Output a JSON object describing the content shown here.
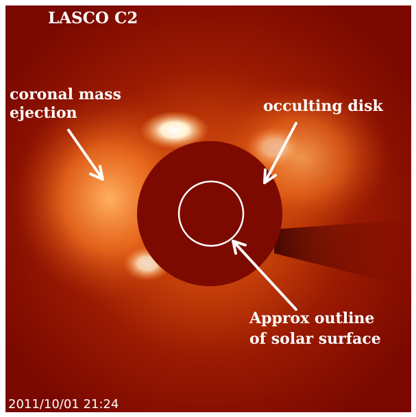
{
  "title": "LASCO C2",
  "annotations": [
    {
      "lines": [
        "coronal mass",
        "ejection"
      ]
    },
    {
      "lines": [
        "occulting disk"
      ]
    },
    {
      "lines": [
        "Approx outline",
        "of solar surface"
      ]
    }
  ],
  "timestamp": "2011/10/01 21:24"
}
